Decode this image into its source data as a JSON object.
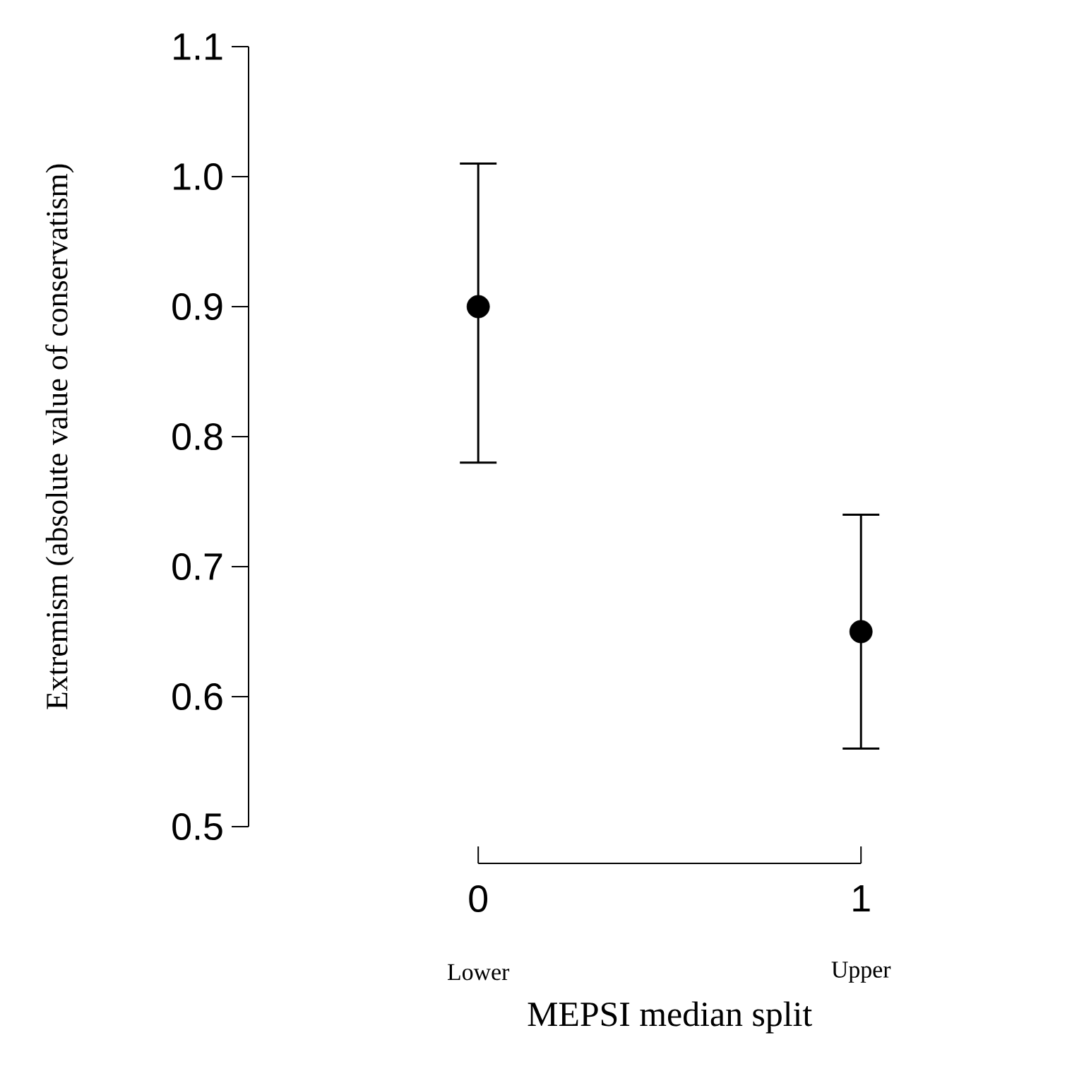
{
  "chart_data": {
    "type": "scatter",
    "xlabel": "MEPSI median split",
    "ylabel": "Extremism (absolute value of conservatism)",
    "categories": [
      "0",
      "1"
    ],
    "values": [
      0.9,
      0.65
    ],
    "errors": [
      [
        0.78,
        1.01
      ],
      [
        0.56,
        0.74
      ]
    ],
    "color": "#000000",
    "marker": "circle",
    "grid": false,
    "ylim": [
      0.5,
      1.1
    ],
    "yticks": [
      0.5,
      0.6,
      0.7,
      0.8,
      0.9,
      {
        "value": 1.0,
        "label": "1.0"
      },
      1.1
    ],
    "annotations": [
      "Lower",
      "Upper"
    ]
  }
}
